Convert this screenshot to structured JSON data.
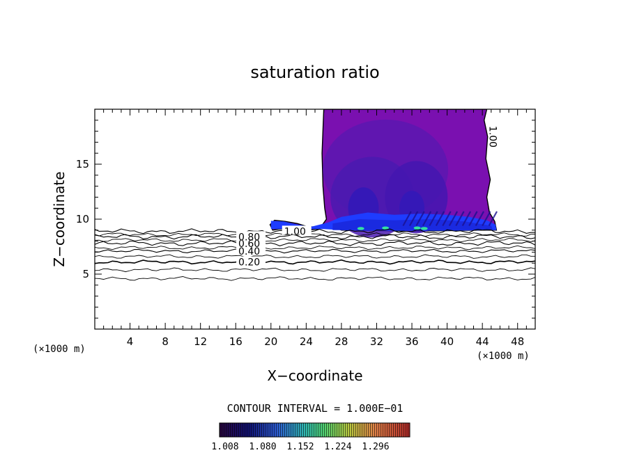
{
  "chart_data": {
    "type": "contour",
    "title": "saturation ratio",
    "xlabel": "X−coordinate",
    "ylabel": "Z−coordinate",
    "x_unit_left": "(×1000 m)",
    "x_unit_right": "(×1000 m)",
    "xlim": [
      0,
      50
    ],
    "ylim": [
      0,
      20
    ],
    "x_ticks": [
      4,
      8,
      12,
      16,
      20,
      24,
      28,
      32,
      36,
      40,
      44,
      48
    ],
    "y_ticks": [
      5,
      10,
      15
    ],
    "contour_interval_text": "CONTOUR INTERVAL = 1.000E−01",
    "line_contours": [
      {
        "level": 0.2,
        "label": "0.20",
        "z": 6.1,
        "label_x": 16.3
      },
      {
        "level": 0.4,
        "label": "0.40",
        "z": 7.1,
        "label_x": 16.3
      },
      {
        "level": 0.6,
        "label": "0.60",
        "z": 7.8,
        "label_x": 16.3
      },
      {
        "level": 0.8,
        "label": "0.80",
        "z": 8.4,
        "label_x": 16.3
      },
      {
        "level": 1.0,
        "label": "1.00",
        "z": 8.9,
        "label_x": 21.5
      },
      {
        "level": 1.0,
        "label": "1.00",
        "z": 17.5,
        "label_x": 44.5
      }
    ],
    "unlabeled_contours_z": [
      4.6,
      5.4,
      6.6,
      7.4,
      8.1,
      8.6
    ],
    "filled_region": {
      "x_range": [
        20,
        46
      ],
      "z_range": [
        9,
        20
      ],
      "plume_x_range": [
        26,
        45
      ],
      "color_low": "#6a0dad",
      "color_mid": "#2a1f9e",
      "color_base": "#1e3cff",
      "color_spot": "#33e0a0"
    },
    "colorbar": {
      "labels": [
        "1.008",
        "1.080",
        "1.152",
        "1.224",
        "1.296"
      ],
      "colors": [
        "#3b0a4a",
        "#1a1a8c",
        "#2f6fd8",
        "#33c8a0",
        "#7fe060",
        "#e0d040",
        "#e08040",
        "#c03030"
      ]
    }
  }
}
